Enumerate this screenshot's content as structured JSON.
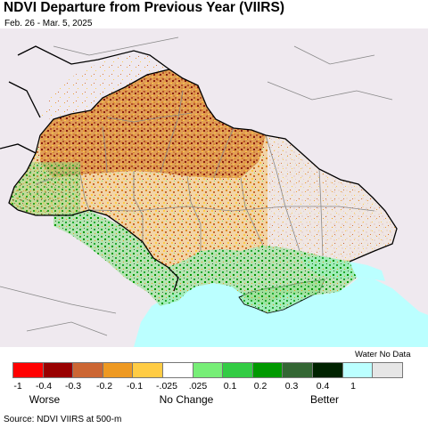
{
  "header": {
    "title": "NDVI Departure from Previous Year (VIIRS)",
    "date_range": "Feb. 26 - Mar. 5, 2025"
  },
  "legend": {
    "nodata_label": "Water No Data",
    "swatches": [
      {
        "color": "#ff0000"
      },
      {
        "color": "#990000"
      },
      {
        "color": "#cc6633"
      },
      {
        "color": "#ee9922"
      },
      {
        "color": "#ffcc44"
      },
      {
        "color": "#ffffff"
      },
      {
        "color": "#77ee77"
      },
      {
        "color": "#33cc44"
      },
      {
        "color": "#009900"
      },
      {
        "color": "#336633"
      },
      {
        "color": "#002200"
      },
      {
        "color": "#bbffff"
      },
      {
        "color": "#e6e6e6"
      }
    ],
    "ticks": [
      "-1",
      "-0.4",
      "-0.3",
      "-0.2",
      "-0.1",
      "-.025",
      ".025",
      "0.1",
      "0.2",
      "0.3",
      "0.4",
      "1"
    ],
    "categories": {
      "worse": "Worse",
      "no_change": "No Change",
      "better": "Better"
    }
  },
  "colors": {
    "background_land": "#efe9ef",
    "sea": "#bbffff",
    "border_country": "#000000",
    "border_region": "#888888"
  },
  "footer": {
    "source": "Source: NDVI VIIRS at 500-m"
  }
}
